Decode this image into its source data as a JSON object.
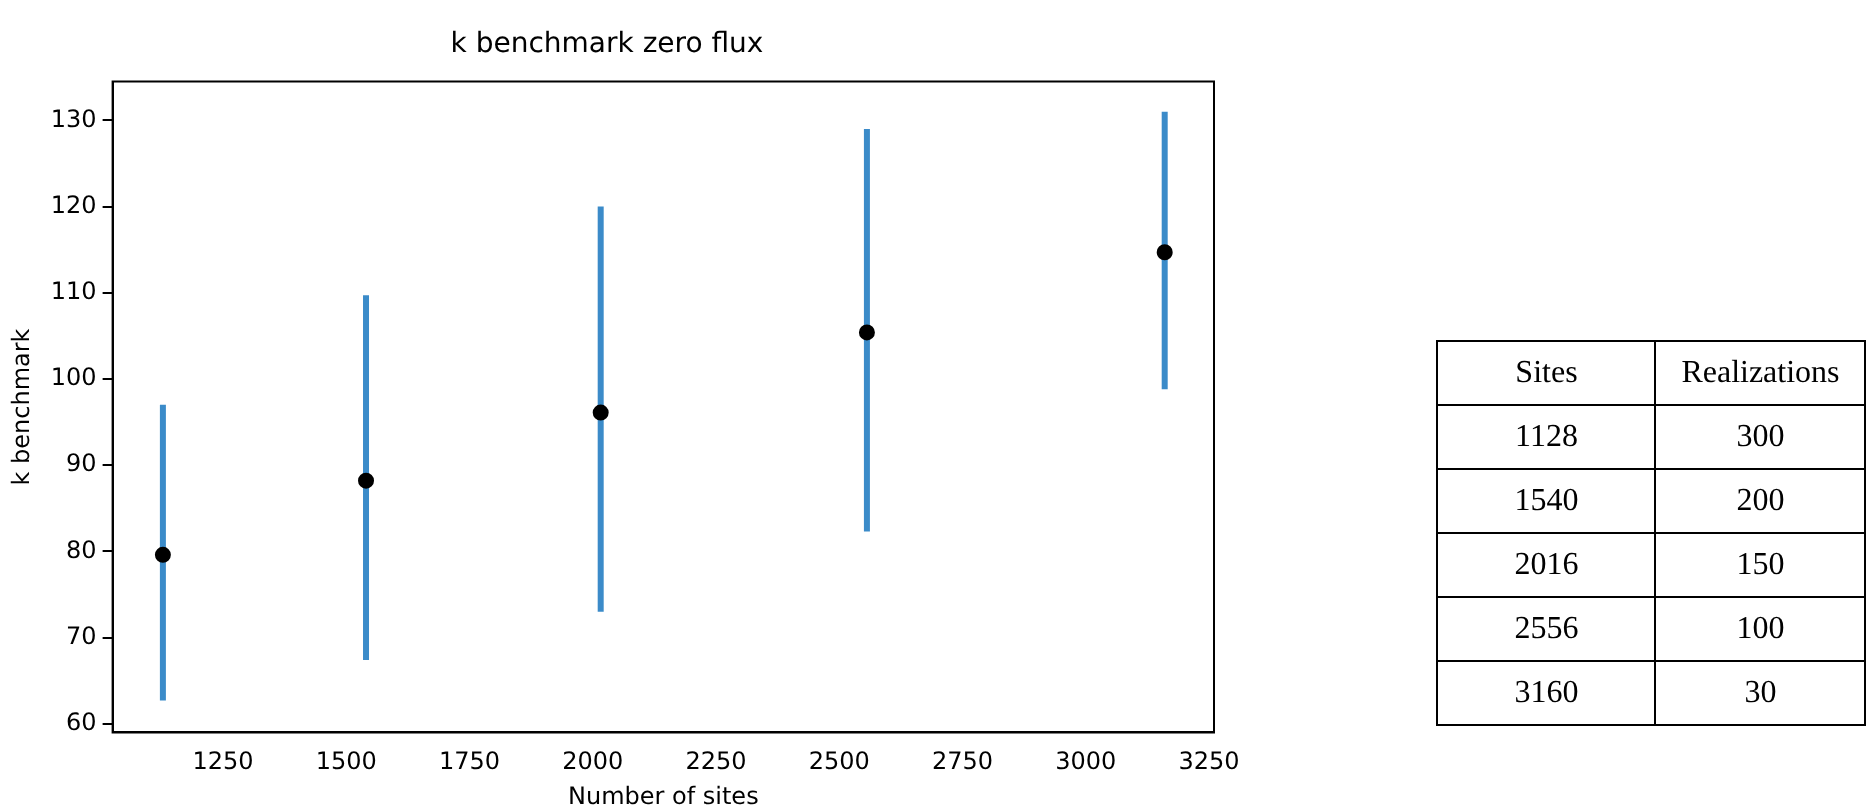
{
  "chart_data": [
    {
      "type": "scatter",
      "title": "k benchmark zero flux",
      "xlabel": "Number of sites",
      "ylabel": "k benchmark",
      "x": [
        1128,
        1540,
        2016,
        2556,
        3160
      ],
      "series": [
        {
          "color": "#000000",
          "values": [
            79.6,
            88.2,
            96.1,
            105.4,
            114.7
          ],
          "errors": [
            [
              62.7,
              97
            ],
            [
              67.4,
              109.7
            ],
            [
              73,
              120
            ],
            [
              82.3,
              129
            ],
            [
              98.8,
              131
            ]
          ]
        }
      ],
      "xlim": [
        1026,
        3260
      ],
      "xticks": [
        1250,
        1500,
        1750,
        2000,
        2250,
        2500,
        2750,
        3000,
        3250
      ],
      "ylim": [
        59,
        134.5
      ],
      "yticks": [
        60,
        70,
        80,
        90,
        100,
        110,
        120,
        130
      ],
      "grid": false,
      "legend": false,
      "marker": "circle"
    },
    {
      "type": "other",
      "xlabel": "Sites",
      "ylabel": "Realizations",
      "categories": [
        "1128",
        "1540",
        "2016",
        "2556",
        "3160"
      ],
      "values": [
        300,
        200,
        150,
        100,
        30
      ],
      "data_labels": true
    }
  ]
}
